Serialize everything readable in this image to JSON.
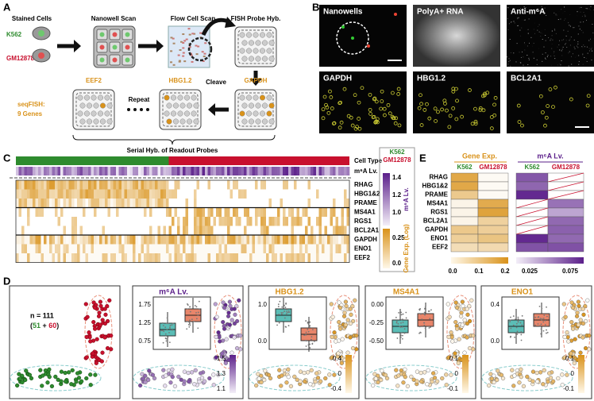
{
  "a": {
    "label": "A",
    "stained_cells": "Stained Cells",
    "k562": "K562",
    "gm12878": "GM12878",
    "nanowell_scan": "Nanowell Scan",
    "flow_cell_scan": "Flow Cell Scan",
    "fish_probe_hyb": "FISH Probe Hyb.",
    "eef2": "EEF2",
    "repeat": "Repeat",
    "hbg": "HBG1.2",
    "cleave": "Cleave",
    "gapdh": "GAPDH",
    "seqfish": "seqFISH:",
    "genes": "9 Genes",
    "serial": "Serial Hyb. of Readout Probes"
  },
  "b": {
    "label": "B",
    "images": [
      "Nanowells",
      "PolyA+ RNA",
      "Anti-m⁶A",
      "GAPDH",
      "HBG1.2",
      "BCL2A1"
    ]
  },
  "c": {
    "label": "C",
    "rows": [
      "Cell Type",
      "m⁶A Lv."
    ],
    "genes": [
      "RHAG",
      "HBG1&2",
      "PRAME",
      "MS4A1",
      "RGS1",
      "BCL2A1",
      "GAPDH",
      "ENO1",
      "EEF2"
    ],
    "legend": {
      "k562": "K562",
      "gm12878": "GM12878"
    },
    "m6a_bar": {
      "title": "m⁶A Lv.",
      "ticks": [
        "1.4",
        "1.2",
        "1.0"
      ]
    },
    "exp_bar": {
      "title": "Gene Exp. (Log)",
      "ticks": [
        "0.25",
        "0.0"
      ]
    }
  },
  "d": {
    "label": "D",
    "n": "n = 111",
    "open": "(",
    "k562_n": "51",
    "plus": " + ",
    "gm_n": "60",
    "close": ")",
    "panels": [
      {
        "title": "m⁶A Lv.",
        "inset_ticks": [
          "1.75",
          "1.25",
          "0.75"
        ],
        "bar_ticks": [
          "1.5",
          "1.3",
          "1.1"
        ]
      },
      {
        "title": "HBG1.2",
        "inset_ticks": [
          "1.0",
          "0.0"
        ],
        "bar_ticks": [
          "0.4",
          "0",
          "-0.4"
        ]
      },
      {
        "title": "MS4A1",
        "inset_ticks": [
          "0.00",
          "-0.25",
          "-0.50"
        ],
        "bar_ticks": [
          "0.1",
          "0",
          "-0.1"
        ]
      },
      {
        "title": "ENO1",
        "inset_ticks": [
          "0.4",
          "0.0"
        ],
        "bar_ticks": [
          "0.1",
          "0",
          "-0.1"
        ]
      }
    ]
  },
  "e": {
    "label": "E",
    "gene_exp": "Gene Exp.",
    "m6a": "m⁶A Lv.",
    "columns": [
      "K562",
      "GM12878",
      "K562",
      "GM12878"
    ],
    "genes": [
      "RHAG",
      "HBG1&2",
      "PRAME",
      "MS4A1",
      "RGS1",
      "BCL2A1",
      "GAPDH",
      "ENO1",
      "EEF2"
    ],
    "exp_ticks": [
      "0.0",
      "0.1",
      "0.2"
    ],
    "m6a_ticks": [
      "0.025",
      "0.075"
    ]
  }
}
